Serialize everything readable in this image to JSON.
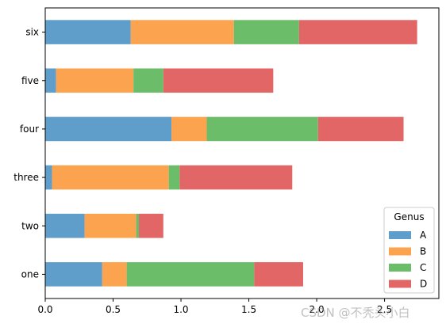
{
  "chart_data": {
    "type": "bar",
    "orientation": "horizontal",
    "stacked": true,
    "categories": [
      "one",
      "two",
      "three",
      "four",
      "five",
      "six"
    ],
    "series": [
      {
        "name": "A",
        "color": "#5f9ecb",
        "values": [
          0.42,
          0.29,
          0.05,
          0.93,
          0.08,
          0.63
        ]
      },
      {
        "name": "B",
        "color": "#fca34f",
        "values": [
          0.18,
          0.38,
          0.86,
          0.26,
          0.57,
          0.76
        ]
      },
      {
        "name": "C",
        "color": "#6bbd69",
        "values": [
          0.94,
          0.02,
          0.08,
          0.82,
          0.22,
          0.48
        ]
      },
      {
        "name": "D",
        "color": "#e26666",
        "values": [
          0.36,
          0.18,
          0.83,
          0.63,
          0.81,
          0.87
        ]
      }
    ],
    "xlim": [
      0,
      2.9
    ],
    "xticks": [
      "0.0",
      "0.5",
      "1.0",
      "1.5",
      "2.0",
      "2.5"
    ],
    "xtick_values": [
      0,
      0.5,
      1.0,
      1.5,
      2.0,
      2.5
    ],
    "legend": {
      "title": "Genus",
      "placement": "lower-right"
    },
    "grid": false
  },
  "watermark": "CSDN @不秃头小白"
}
